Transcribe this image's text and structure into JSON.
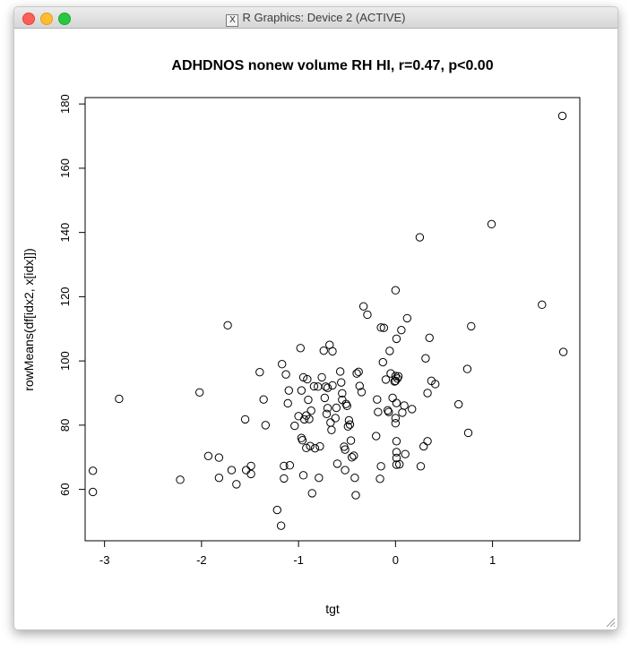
{
  "window": {
    "title": "R Graphics: Device 2 (ACTIVE)",
    "x_icon_glyph": "X"
  },
  "chart_data": {
    "type": "scatter",
    "title": "ADHDNOS nonew volume RH HI, r=0.47, p<0.00",
    "xlabel": "tgt",
    "ylabel": "rowMeans(df[idx2, x[idx]])",
    "xlim": [
      -3.2,
      1.9
    ],
    "ylim": [
      44,
      182
    ],
    "xticks": [
      -3,
      -2,
      -1,
      0,
      1
    ],
    "yticks": [
      60,
      80,
      100,
      120,
      140,
      160,
      180
    ],
    "grid": false,
    "point_style": "open circle",
    "points": [
      [
        -3.12,
        65.8
      ],
      [
        -3.12,
        59.2
      ],
      [
        -2.85,
        88.2
      ],
      [
        -2.22,
        63.0
      ],
      [
        -2.02,
        90.2
      ],
      [
        -1.93,
        70.4
      ],
      [
        -1.82,
        63.6
      ],
      [
        -1.82,
        69.9
      ],
      [
        -1.73,
        111.1
      ],
      [
        -1.69,
        66.0
      ],
      [
        -1.64,
        61.6
      ],
      [
        -1.55,
        81.8
      ],
      [
        -1.54,
        66.0
      ],
      [
        -1.49,
        64.8
      ],
      [
        -1.49,
        67.3
      ],
      [
        -1.4,
        96.5
      ],
      [
        -1.36,
        88.0
      ],
      [
        -1.34,
        80.0
      ],
      [
        -1.22,
        53.6
      ],
      [
        -1.18,
        48.7
      ],
      [
        -1.17,
        99.0
      ],
      [
        -1.15,
        67.3
      ],
      [
        -1.15,
        63.4
      ],
      [
        -1.13,
        95.8
      ],
      [
        -1.11,
        86.8
      ],
      [
        -1.1,
        90.8
      ],
      [
        -1.09,
        67.5
      ],
      [
        -1.04,
        79.8
      ],
      [
        -1.0,
        82.8
      ],
      [
        -0.98,
        104.0
      ],
      [
        -0.97,
        76.0
      ],
      [
        -0.97,
        90.8
      ],
      [
        -0.96,
        75.3
      ],
      [
        -0.95,
        64.4
      ],
      [
        -0.95,
        94.9
      ],
      [
        -0.94,
        81.8
      ],
      [
        -0.92,
        83.0
      ],
      [
        -0.92,
        72.9
      ],
      [
        -0.91,
        94.3
      ],
      [
        -0.9,
        87.9
      ],
      [
        -0.89,
        81.9
      ],
      [
        -0.88,
        73.5
      ],
      [
        -0.87,
        84.5
      ],
      [
        -0.86,
        58.8
      ],
      [
        -0.84,
        92.1
      ],
      [
        -0.83,
        72.8
      ],
      [
        -0.8,
        92.0
      ],
      [
        -0.79,
        63.6
      ],
      [
        -0.78,
        73.4
      ],
      [
        -0.76,
        94.9
      ],
      [
        -0.74,
        103.2
      ],
      [
        -0.73,
        88.5
      ],
      [
        -0.72,
        92.0
      ],
      [
        -0.71,
        83.5
      ],
      [
        -0.7,
        91.6
      ],
      [
        -0.7,
        85.3
      ],
      [
        -0.68,
        105.0
      ],
      [
        -0.67,
        80.8
      ],
      [
        -0.66,
        78.5
      ],
      [
        -0.65,
        103.0
      ],
      [
        -0.65,
        92.4
      ],
      [
        -0.62,
        82.2
      ],
      [
        -0.61,
        85.4
      ],
      [
        -0.6,
        68.0
      ],
      [
        -0.57,
        96.7
      ],
      [
        -0.56,
        93.3
      ],
      [
        -0.55,
        89.9
      ],
      [
        -0.55,
        87.9
      ],
      [
        -0.53,
        73.3
      ],
      [
        -0.52,
        66.0
      ],
      [
        -0.52,
        72.4
      ],
      [
        -0.51,
        86.6
      ],
      [
        -0.5,
        86.0
      ],
      [
        -0.49,
        79.6
      ],
      [
        -0.48,
        81.5
      ],
      [
        -0.47,
        80.2
      ],
      [
        -0.46,
        75.2
      ],
      [
        -0.45,
        70.0
      ],
      [
        -0.43,
        70.5
      ],
      [
        -0.42,
        63.6
      ],
      [
        -0.41,
        58.2
      ],
      [
        -0.4,
        96.1
      ],
      [
        -0.38,
        96.6
      ],
      [
        -0.37,
        92.2
      ],
      [
        -0.35,
        90.3
      ],
      [
        -0.33,
        117.0
      ],
      [
        -0.29,
        114.4
      ],
      [
        -0.2,
        76.6
      ],
      [
        -0.19,
        88.0
      ],
      [
        -0.18,
        84.1
      ],
      [
        -0.16,
        63.3
      ],
      [
        -0.15,
        110.4
      ],
      [
        -0.15,
        67.2
      ],
      [
        -0.13,
        99.6
      ],
      [
        -0.12,
        110.3
      ],
      [
        -0.1,
        94.2
      ],
      [
        -0.08,
        84.6
      ],
      [
        -0.07,
        84.1
      ],
      [
        -0.06,
        103.1
      ],
      [
        -0.05,
        96.1
      ],
      [
        -0.03,
        88.5
      ],
      [
        -0.01,
        93.6
      ],
      [
        0.0,
        95.3
      ],
      [
        0.0,
        122.0
      ],
      [
        0.0,
        93.8
      ],
      [
        0.0,
        82.2
      ],
      [
        0.0,
        80.6
      ],
      [
        0.01,
        69.8
      ],
      [
        0.01,
        67.7
      ],
      [
        0.01,
        106.9
      ],
      [
        0.01,
        86.9
      ],
      [
        0.01,
        75.0
      ],
      [
        0.01,
        71.6
      ],
      [
        0.02,
        94.5
      ],
      [
        0.03,
        95.2
      ],
      [
        0.04,
        67.8
      ],
      [
        0.06,
        109.6
      ],
      [
        0.07,
        83.9
      ],
      [
        0.09,
        86.1
      ],
      [
        0.1,
        71.0
      ],
      [
        0.12,
        113.3
      ],
      [
        0.17,
        85.0
      ],
      [
        0.25,
        138.5
      ],
      [
        0.26,
        67.2
      ],
      [
        0.29,
        73.4
      ],
      [
        0.31,
        100.8
      ],
      [
        0.33,
        75.0
      ],
      [
        0.33,
        90.0
      ],
      [
        0.35,
        107.2
      ],
      [
        0.37,
        93.8
      ],
      [
        0.41,
        92.8
      ],
      [
        0.65,
        86.5
      ],
      [
        0.74,
        97.5
      ],
      [
        0.75,
        77.6
      ],
      [
        0.78,
        110.8
      ],
      [
        0.99,
        142.6
      ],
      [
        1.51,
        117.5
      ],
      [
        1.72,
        176.3
      ],
      [
        1.73,
        102.8
      ]
    ]
  }
}
